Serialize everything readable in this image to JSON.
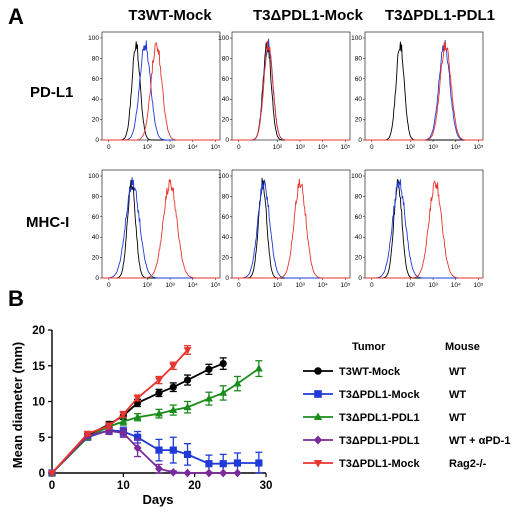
{
  "panel_a": {
    "letter": "A",
    "columns": [
      "T3WT-Mock",
      "T3ΔPDL1-Mock",
      "T3ΔPDL1-PDL1"
    ],
    "rows": [
      "PD-L1",
      "MHC-I"
    ],
    "y_ticks": [
      "0",
      "20",
      "40",
      "60",
      "80",
      "100"
    ],
    "x_ticks": [
      "0",
      "10²",
      "10³",
      "10⁴",
      "10⁵"
    ],
    "colors": {
      "isotype": "#000000",
      "blue": "#1f3ad6",
      "red": "#e8352e"
    },
    "histograms": [
      [
        {
          "isotype": 1.5,
          "blue": 1.9,
          "red": 2.4,
          "spread": 0.24
        },
        {
          "isotype": 1.55,
          "blue": 1.6,
          "red": 1.6,
          "spread": 0.2
        },
        {
          "isotype": 1.55,
          "blue": 3.5,
          "red": 3.55,
          "spread": 0.24
        }
      ],
      [
        {
          "isotype": 1.3,
          "blue": 1.35,
          "red": 3.0,
          "spread": 0.3
        },
        {
          "isotype": 1.35,
          "blue": 1.4,
          "red": 3.0,
          "spread": 0.26
        },
        {
          "isotype": 1.45,
          "blue": 1.5,
          "red": 3.1,
          "spread": 0.28
        }
      ]
    ]
  },
  "chart_data": {
    "type": "line",
    "xlabel": "Days",
    "ylabel": "Mean diameter (mm)",
    "xlim": [
      0,
      30
    ],
    "ylim": [
      0,
      20
    ],
    "x_ticks": [
      0,
      10,
      20,
      30
    ],
    "y_ticks": [
      0,
      5,
      10,
      15,
      20
    ],
    "series": [
      {
        "name": "T3WT-Mock",
        "mouse": "WT",
        "color": "#000000",
        "marker": "circle",
        "x": [
          0,
          5,
          8,
          10,
          12,
          15,
          17,
          19,
          22,
          24
        ],
        "y": [
          0,
          5.3,
          6.8,
          8.0,
          9.8,
          11.2,
          12.0,
          13.0,
          14.5,
          15.3
        ],
        "err": [
          0,
          0.2,
          0.4,
          0.5,
          0.5,
          0.5,
          0.6,
          0.7,
          0.7,
          0.8
        ]
      },
      {
        "name": "T3ΔPDL1-Mock",
        "mouse": "WT",
        "color": "#1f3ad6",
        "marker": "square",
        "x": [
          0,
          5,
          8,
          10,
          12,
          15,
          17,
          19,
          22,
          24,
          26,
          29
        ],
        "y": [
          0,
          5.0,
          6.0,
          5.8,
          5.0,
          3.2,
          3.2,
          2.6,
          1.3,
          1.3,
          1.4,
          1.4
        ],
        "err": [
          0,
          0.3,
          0.6,
          0.6,
          0.8,
          1.5,
          1.8,
          1.5,
          1.2,
          1.3,
          1.4,
          1.5
        ]
      },
      {
        "name": "T3ΔPDL1-PDL1",
        "mouse": "WT",
        "color": "#1a8c1a",
        "marker": "triangle",
        "x": [
          0,
          5,
          8,
          10,
          12,
          15,
          17,
          19,
          22,
          24,
          26,
          29
        ],
        "y": [
          0,
          5.0,
          6.5,
          7.2,
          7.8,
          8.3,
          8.8,
          9.2,
          10.4,
          11.2,
          12.5,
          14.6
        ],
        "err": [
          0,
          0.3,
          0.4,
          0.5,
          0.5,
          0.6,
          0.7,
          0.8,
          0.9,
          1.0,
          1.0,
          1.1
        ]
      },
      {
        "name": "T3ΔPDL1-PDL1",
        "mouse": "WT + αPD-1",
        "color": "#7a2a9a",
        "marker": "diamond",
        "x": [
          0,
          5,
          8,
          10,
          12,
          15,
          17,
          19,
          22,
          24,
          26
        ],
        "y": [
          0,
          5.2,
          5.9,
          5.6,
          3.5,
          0.6,
          0.1,
          0,
          0,
          0,
          0
        ],
        "err": [
          0,
          0.3,
          0.5,
          0.6,
          1.2,
          0.6,
          0.2,
          0,
          0,
          0,
          0
        ]
      },
      {
        "name": "T3ΔPDL1-Mock",
        "mouse": "Rag2-/-",
        "color": "#e8352e",
        "marker": "triangle-down",
        "x": [
          0,
          5,
          8,
          10,
          12,
          15,
          17,
          19
        ],
        "y": [
          0,
          5.5,
          6.6,
          8.2,
          10.5,
          13.0,
          15.0,
          17.2
        ],
        "err": [
          0,
          0.2,
          0.4,
          0.4,
          0.4,
          0.5,
          0.5,
          0.6
        ]
      }
    ],
    "legend": {
      "head_tumor": "Tumor",
      "head_mouse": "Mouse",
      "placement": "right"
    }
  },
  "panel_b": {
    "letter": "B"
  }
}
